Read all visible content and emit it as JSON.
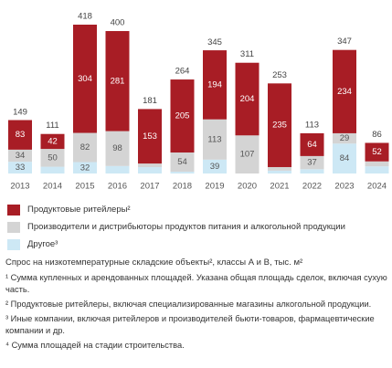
{
  "chart_data": {
    "type": "stacked_bar",
    "categories": [
      "2013",
      "2014",
      "2015",
      "2016",
      "2017",
      "2018",
      "2019",
      "2020",
      "2021",
      "2022",
      "2023",
      "2024"
    ],
    "series": [
      {
        "name": "Другое³",
        "color": "#cde8f5",
        "values": [
          33,
          19,
          32,
          21,
          18,
          5,
          39,
          0,
          8,
          12,
          84,
          20
        ]
      },
      {
        "name": "Производители и дистрибьюторы продуктов питания и алкогольной продукции",
        "color": "#d4d4d4",
        "values": [
          34,
          50,
          82,
          98,
          10,
          54,
          113,
          107,
          10,
          37,
          29,
          14
        ]
      },
      {
        "name": "Продуктовые ритейлеры²",
        "color": "#a81d25",
        "values": [
          83,
          42,
          304,
          281,
          153,
          205,
          194,
          204,
          235,
          64,
          234,
          52
        ]
      }
    ],
    "totals": [
      149,
      111,
      418,
      400,
      181,
      264,
      345,
      311,
      253,
      113,
      347,
      86
    ],
    "title": "Спрос на низкотемпературные складские объекты², классы А и В, тыс. м²",
    "notes": [
      "¹ Сумма купленных и арендованных площадей. Указана общая площадь сделок, включая сухую часть.",
      "² Продуктовые ритейлеры, включая специализированные магазины алкогольной продукции.",
      "³ Иные компании, включая ритейлеров и производителей бьюти-товаров, фармацевтические компании и др.",
      "⁴ Сумма площадей на стадии строительства."
    ]
  }
}
